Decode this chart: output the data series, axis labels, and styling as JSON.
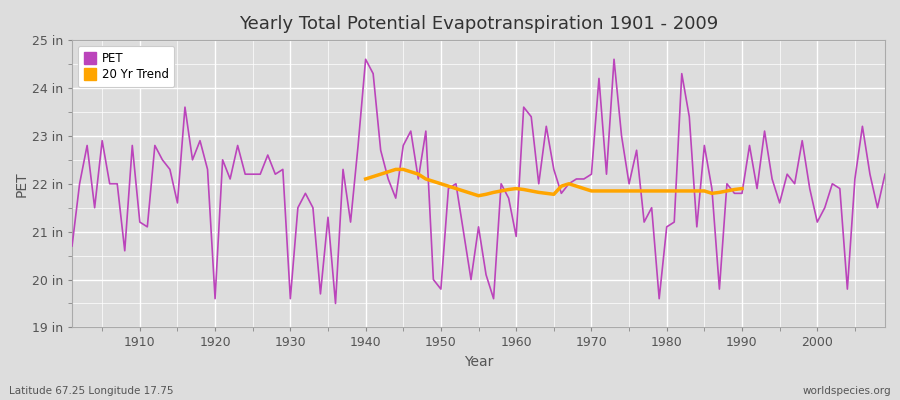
{
  "title": "Yearly Total Potential Evapotranspiration 1901 - 2009",
  "xlabel": "Year",
  "ylabel": "PET",
  "pet_label": "PET",
  "trend_label": "20 Yr Trend",
  "pet_color": "#BB44BB",
  "trend_color": "#FFA500",
  "fig_bg_color": "#DDDDDD",
  "plot_bg_color": "#DDDDDD",
  "grid_color": "#FFFFFF",
  "ylim": [
    19,
    25
  ],
  "yticks": [
    19,
    20,
    21,
    22,
    23,
    24,
    25
  ],
  "ytick_labels": [
    "19 in",
    "20 in",
    "21 in",
    "22 in",
    "23 in",
    "24 in",
    "25 in"
  ],
  "xlim": [
    1901,
    2009
  ],
  "start_year": 1901,
  "bottom_left_text": "Latitude 67.25 Longitude 17.75",
  "bottom_right_text": "worldspecies.org",
  "pet_values": [
    20.7,
    22.0,
    22.8,
    21.5,
    22.9,
    22.0,
    22.0,
    20.6,
    22.8,
    21.2,
    21.1,
    22.8,
    22.5,
    22.3,
    21.6,
    23.6,
    22.5,
    22.9,
    22.3,
    19.6,
    22.5,
    22.1,
    22.8,
    22.2,
    22.2,
    22.2,
    22.6,
    22.2,
    22.3,
    19.6,
    21.5,
    21.8,
    21.5,
    19.7,
    21.3,
    19.5,
    22.3,
    21.2,
    22.8,
    24.6,
    24.3,
    22.7,
    22.1,
    21.7,
    22.8,
    23.1,
    22.1,
    23.1,
    20.0,
    19.8,
    21.9,
    22.0,
    21.0,
    20.0,
    21.1,
    20.1,
    19.6,
    22.0,
    21.7,
    20.9,
    23.6,
    23.4,
    22.0,
    23.2,
    22.3,
    21.8,
    22.0,
    22.1,
    22.1,
    22.2,
    24.2,
    22.2,
    24.6,
    23.0,
    22.0,
    22.7,
    21.2,
    21.5,
    19.6,
    21.1,
    21.2,
    24.3,
    23.4,
    21.1,
    22.8,
    21.9,
    19.8,
    22.0,
    21.8,
    21.8,
    22.8,
    21.9,
    23.1,
    22.1,
    21.6,
    22.2,
    22.0,
    22.9,
    21.9,
    21.2,
    21.5,
    22.0,
    21.9,
    19.8,
    22.1,
    23.2,
    22.2,
    21.5,
    22.2
  ],
  "trend_years": [
    1940,
    1941,
    1942,
    1943,
    1944,
    1945,
    1946,
    1947,
    1948,
    1949,
    1950,
    1951,
    1952,
    1953,
    1954,
    1955,
    1956,
    1957,
    1958,
    1959,
    1960,
    1961,
    1962,
    1963,
    1964,
    1965,
    1966,
    1967,
    1968,
    1969,
    1970,
    1985,
    1986,
    1987,
    1988,
    1989,
    1990
  ],
  "trend_vals": [
    22.1,
    22.15,
    22.2,
    22.25,
    22.3,
    22.3,
    22.25,
    22.2,
    22.1,
    22.05,
    22.0,
    21.95,
    21.9,
    21.85,
    21.8,
    21.75,
    21.78,
    21.82,
    21.85,
    21.88,
    21.9,
    21.88,
    21.85,
    21.82,
    21.8,
    21.78,
    21.95,
    22.0,
    21.95,
    21.9,
    21.85,
    21.85,
    21.8,
    21.82,
    21.85,
    21.88,
    21.9
  ]
}
